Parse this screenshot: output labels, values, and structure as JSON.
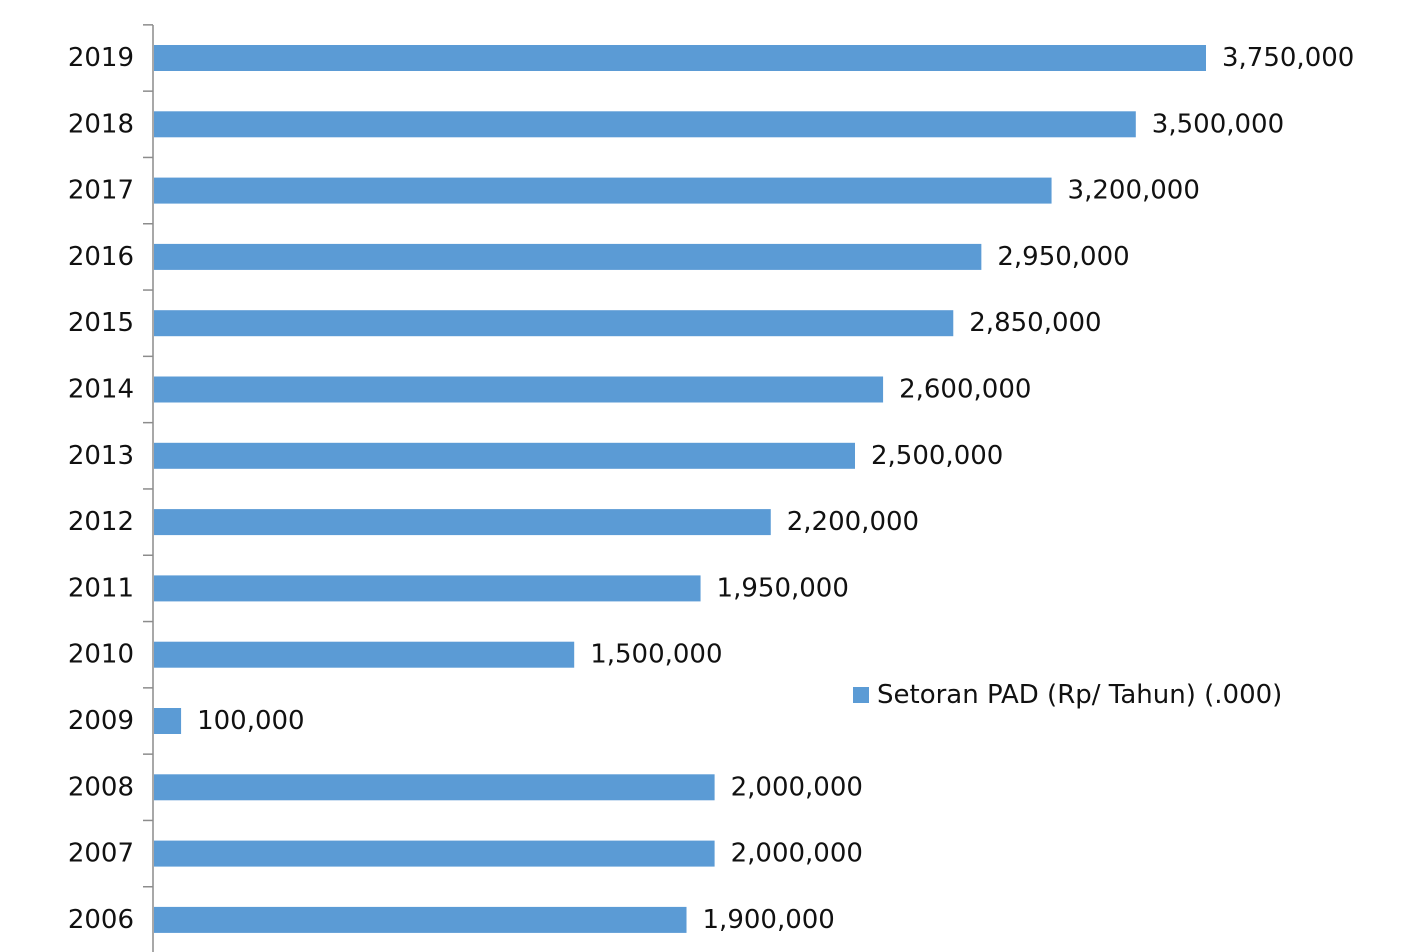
{
  "chart_data": {
    "type": "bar",
    "orientation": "horizontal",
    "categories": [
      "2006",
      "2007",
      "2008",
      "2009",
      "2010",
      "2011",
      "2012",
      "2013",
      "2014",
      "2015",
      "2016",
      "2017",
      "2018",
      "2019"
    ],
    "series": [
      {
        "name": "Setoran PAD (Rp/ Tahun) (.000)",
        "values": [
          1900000,
          2000000,
          2000000,
          100000,
          1500000,
          1950000,
          2200000,
          2500000,
          2600000,
          2850000,
          2950000,
          3200000,
          3500000,
          3750000
        ],
        "value_labels": [
          "1,900,000",
          "2,000,000",
          "2,000,000",
          "100,000",
          "1,500,000",
          "1,950,000",
          "2,200,000",
          "2,500,000",
          "2,600,000",
          "2,850,000",
          "2,950,000",
          "3,200,000",
          "3,500,000",
          "3,750,000"
        ],
        "color": "#5b9bd5"
      }
    ],
    "title": "",
    "xlabel": "",
    "ylabel": "",
    "xlim": [
      0,
      3750000
    ],
    "grid": false,
    "legend": {
      "placement": "right",
      "label": "Setoran PAD (Rp/ Tahun) (.000)"
    },
    "colors": {
      "bar": "#5b9bd5",
      "axis": "#8c8c8c",
      "text": "#111111"
    }
  }
}
